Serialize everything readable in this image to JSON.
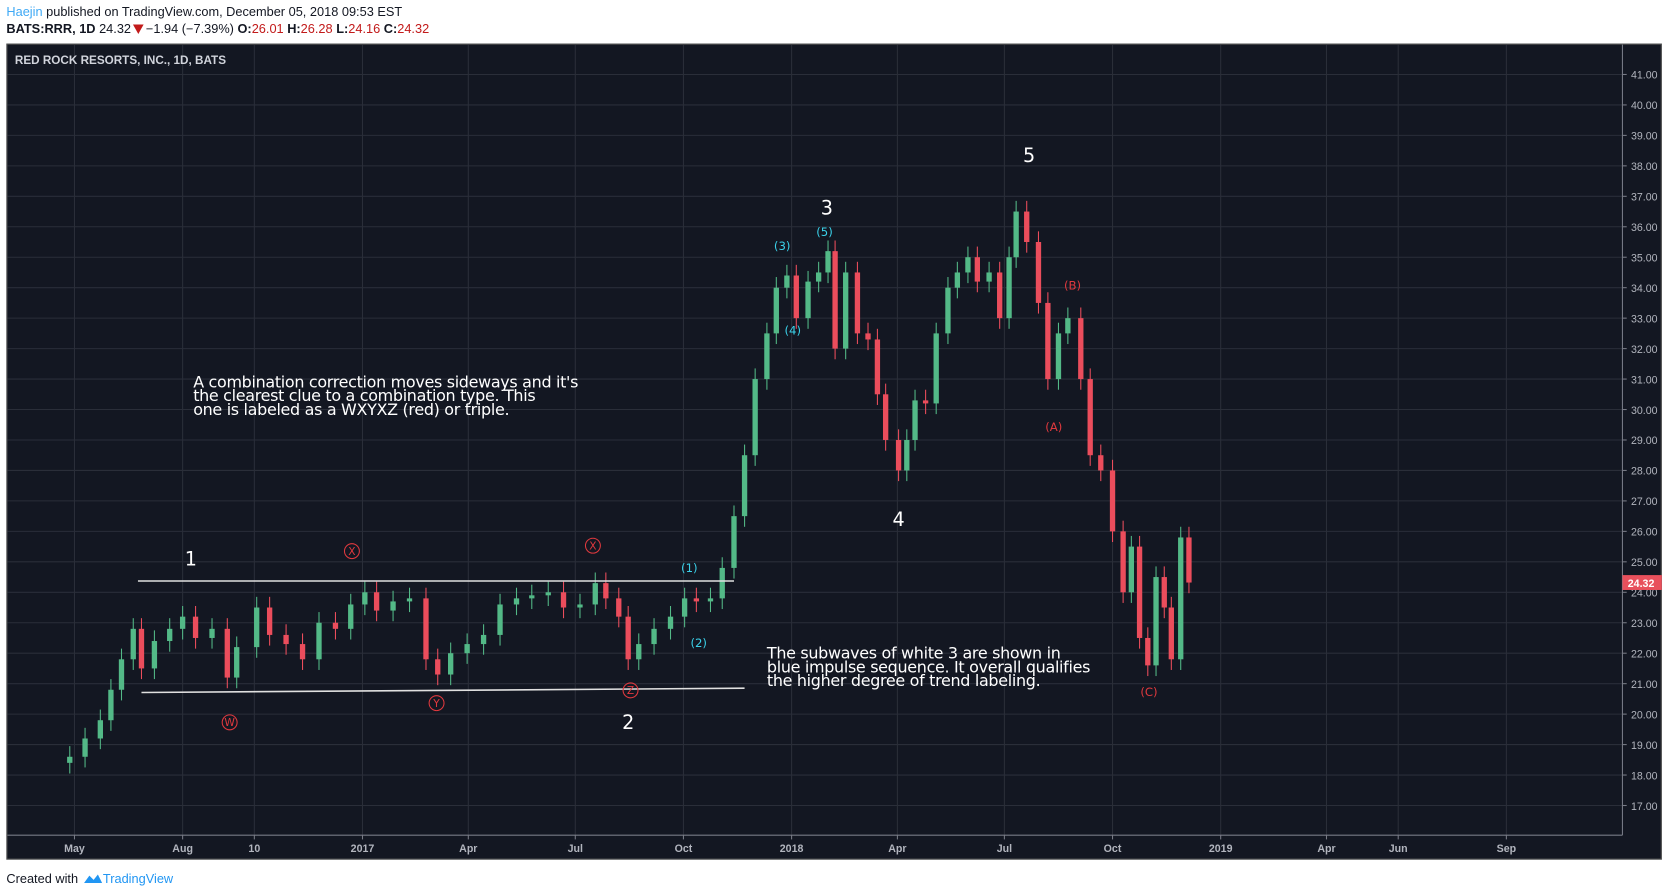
{
  "header": {
    "author": "Haejin",
    "published_text": " published on TradingView.com, December 05, 2018 09:53 EST",
    "symbol": "BATS:RRR, 1D",
    "last": "24.32",
    "change": "−1.94 (−7.39%)",
    "o_label": "O:",
    "o": "26.01",
    "h_label": "H:",
    "h": "26.28",
    "l_label": "L:",
    "l": "24.16",
    "c_label": "C:",
    "c": "24.32",
    "direction_icon": "triangle-down"
  },
  "footer": {
    "created_with": "Created with",
    "brand": "TradingView",
    "logo_icon": "tradingview-cloud-logo"
  },
  "colors": {
    "background": "#131722",
    "grid": "#2a2e39",
    "up": "#53b987",
    "down": "#eb4d5c",
    "axis_text": "#b2b5be",
    "wave_white": "#ffffff",
    "wave_red": "#e0393e",
    "wave_blue": "#3ad0e8",
    "price_tag": "#e8505c"
  },
  "chart_data": {
    "type": "candlestick",
    "title": "RED ROCK RESORTS, INC., 1D, BATS",
    "ylim": [
      16.1,
      42.0
    ],
    "grid": true,
    "y_ticks": [
      "17.00",
      "18.00",
      "19.00",
      "20.00",
      "21.00",
      "22.00",
      "23.00",
      "24.00",
      "25.00",
      "26.00",
      "27.00",
      "28.00",
      "29.00",
      "30.00",
      "31.00",
      "32.00",
      "33.00",
      "34.00",
      "35.00",
      "36.00",
      "37.00",
      "38.00",
      "39.00",
      "40.00",
      "41.00"
    ],
    "x_ticks": [
      {
        "label": "May",
        "date": "2016-05-01"
      },
      {
        "label": "Aug",
        "date": "2016-08-01"
      },
      {
        "label": "10",
        "date": "2016-10-01"
      },
      {
        "label": "2017",
        "date": "2017-01-01"
      },
      {
        "label": "Apr",
        "date": "2017-04-01"
      },
      {
        "label": "Jul",
        "date": "2017-07-01"
      },
      {
        "label": "Oct",
        "date": "2017-10-01"
      },
      {
        "label": "2018",
        "date": "2018-01-01"
      },
      {
        "label": "Apr",
        "date": "2018-04-01"
      },
      {
        "label": "Jul",
        "date": "2018-07-01"
      },
      {
        "label": "Oct",
        "date": "2018-10-01"
      },
      {
        "label": "2019",
        "date": "2019-01-01"
      },
      {
        "label": "Apr",
        "date": "2019-04-01"
      },
      {
        "label": "Jun",
        "date": "2019-06-01"
      },
      {
        "label": "Sep",
        "date": "2019-09-01"
      }
    ],
    "last_price_label": "24.32",
    "closes": [
      [
        "2016-04-27",
        18.6
      ],
      [
        "2016-05-10",
        19.2
      ],
      [
        "2016-05-23",
        19.8
      ],
      [
        "2016-06-01",
        20.8
      ],
      [
        "2016-06-10",
        21.8
      ],
      [
        "2016-06-20",
        22.8
      ],
      [
        "2016-06-27",
        21.5
      ],
      [
        "2016-07-08",
        22.4
      ],
      [
        "2016-07-21",
        22.8
      ],
      [
        "2016-08-01",
        23.2
      ],
      [
        "2016-08-12",
        22.5
      ],
      [
        "2016-08-26",
        22.8
      ],
      [
        "2016-09-08",
        21.2
      ],
      [
        "2016-09-16",
        22.2
      ],
      [
        "2016-10-03",
        23.5
      ],
      [
        "2016-10-14",
        22.6
      ],
      [
        "2016-10-28",
        22.3
      ],
      [
        "2016-11-11",
        21.8
      ],
      [
        "2016-11-25",
        23.0
      ],
      [
        "2016-12-09",
        22.8
      ],
      [
        "2016-12-22",
        23.6
      ],
      [
        "2017-01-03",
        24.0
      ],
      [
        "2017-01-13",
        23.4
      ],
      [
        "2017-01-27",
        23.7
      ],
      [
        "2017-02-10",
        23.8
      ],
      [
        "2017-02-24",
        21.8
      ],
      [
        "2017-03-06",
        21.3
      ],
      [
        "2017-03-17",
        22.0
      ],
      [
        "2017-03-31",
        22.3
      ],
      [
        "2017-04-14",
        22.6
      ],
      [
        "2017-04-28",
        23.6
      ],
      [
        "2017-05-12",
        23.8
      ],
      [
        "2017-05-25",
        23.9
      ],
      [
        "2017-06-08",
        24.0
      ],
      [
        "2017-06-21",
        23.5
      ],
      [
        "2017-07-05",
        23.6
      ],
      [
        "2017-07-18",
        24.3
      ],
      [
        "2017-07-27",
        23.8
      ],
      [
        "2017-08-07",
        23.2
      ],
      [
        "2017-08-15",
        21.8
      ],
      [
        "2017-08-24",
        22.3
      ],
      [
        "2017-09-06",
        22.8
      ],
      [
        "2017-09-20",
        23.2
      ],
      [
        "2017-10-02",
        23.8
      ],
      [
        "2017-10-12",
        23.7
      ],
      [
        "2017-10-24",
        23.8
      ],
      [
        "2017-11-03",
        24.8
      ],
      [
        "2017-11-13",
        26.5
      ],
      [
        "2017-11-22",
        28.5
      ],
      [
        "2017-12-01",
        31.0
      ],
      [
        "2017-12-11",
        32.5
      ],
      [
        "2017-12-19",
        34.0
      ],
      [
        "2017-12-28",
        34.4
      ],
      [
        "2018-01-05",
        33.0
      ],
      [
        "2018-01-15",
        34.2
      ],
      [
        "2018-01-24",
        34.5
      ],
      [
        "2018-02-01",
        35.2
      ],
      [
        "2018-02-07",
        32.0
      ],
      [
        "2018-02-16",
        34.5
      ],
      [
        "2018-02-26",
        32.5
      ],
      [
        "2018-03-07",
        32.3
      ],
      [
        "2018-03-15",
        30.5
      ],
      [
        "2018-03-22",
        29.0
      ],
      [
        "2018-04-02",
        28.0
      ],
      [
        "2018-04-09",
        29.0
      ],
      [
        "2018-04-16",
        30.3
      ],
      [
        "2018-04-25",
        30.2
      ],
      [
        "2018-05-04",
        32.5
      ],
      [
        "2018-05-14",
        34.0
      ],
      [
        "2018-05-22",
        34.5
      ],
      [
        "2018-05-31",
        35.0
      ],
      [
        "2018-06-08",
        34.2
      ],
      [
        "2018-06-18",
        34.5
      ],
      [
        "2018-06-27",
        33.0
      ],
      [
        "2018-07-05",
        35.0
      ],
      [
        "2018-07-11",
        36.5
      ],
      [
        "2018-07-20",
        35.5
      ],
      [
        "2018-07-30",
        33.5
      ],
      [
        "2018-08-07",
        31.0
      ],
      [
        "2018-08-16",
        32.5
      ],
      [
        "2018-08-24",
        33.0
      ],
      [
        "2018-09-04",
        31.0
      ],
      [
        "2018-09-12",
        28.5
      ],
      [
        "2018-09-21",
        28.0
      ],
      [
        "2018-10-01",
        26.0
      ],
      [
        "2018-10-10",
        24.0
      ],
      [
        "2018-10-17",
        25.5
      ],
      [
        "2018-10-24",
        22.5
      ],
      [
        "2018-10-31",
        21.6
      ],
      [
        "2018-11-07",
        24.5
      ],
      [
        "2018-11-14",
        23.5
      ],
      [
        "2018-11-20",
        21.8
      ],
      [
        "2018-11-28",
        25.8
      ],
      [
        "2018-12-05",
        24.32
      ]
    ],
    "trendlines": [
      {
        "from": [
          "2016-06-24",
          24.37
        ],
        "to": [
          "2017-11-13",
          24.37
        ]
      },
      {
        "from": [
          "2016-06-27",
          20.71
        ],
        "to": [
          "2017-11-22",
          20.85
        ]
      }
    ],
    "wave_labels": [
      {
        "text": "1",
        "date": "2016-08-08",
        "price": 25.1,
        "style": "white"
      },
      {
        "text": "2",
        "date": "2017-08-15",
        "price": 19.73,
        "style": "white"
      },
      {
        "text": "3",
        "date": "2018-01-31",
        "price": 36.63,
        "style": "white"
      },
      {
        "text": "4",
        "date": "2018-04-02",
        "price": 26.4,
        "style": "white"
      },
      {
        "text": "5",
        "date": "2018-07-22",
        "price": 38.35,
        "style": "white"
      },
      {
        "text": "W",
        "date": "2016-09-10",
        "price": 19.73,
        "style": "red-circle"
      },
      {
        "text": "X",
        "date": "2016-12-23",
        "price": 25.35,
        "style": "red-circle"
      },
      {
        "text": "Y",
        "date": "2017-03-05",
        "price": 20.36,
        "style": "red-circle"
      },
      {
        "text": "X",
        "date": "2017-07-16",
        "price": 25.53,
        "style": "red-circle"
      },
      {
        "text": "Z",
        "date": "2017-08-17",
        "price": 20.78,
        "style": "red-circle"
      },
      {
        "text": "(1)",
        "date": "2017-10-06",
        "price": 24.8,
        "style": "blue"
      },
      {
        "text": "(2)",
        "date": "2017-10-14",
        "price": 22.35,
        "style": "blue"
      },
      {
        "text": "(3)",
        "date": "2017-12-24",
        "price": 35.38,
        "style": "blue"
      },
      {
        "text": "(4)",
        "date": "2018-01-02",
        "price": 32.6,
        "style": "blue"
      },
      {
        "text": "(5)",
        "date": "2018-01-29",
        "price": 35.83,
        "style": "blue"
      },
      {
        "text": "(A)",
        "date": "2018-08-12",
        "price": 29.44,
        "style": "red"
      },
      {
        "text": "(B)",
        "date": "2018-08-28",
        "price": 34.08,
        "style": "red"
      },
      {
        "text": "(C)",
        "date": "2018-11-01",
        "price": 20.74,
        "style": "red"
      }
    ],
    "notes": [
      {
        "text": "A combination correction moves sideways and it's\nthe clearest clue to a combination type. This\none is labeled as a WXYXZ (red) or triple.",
        "date": "2016-08-10",
        "price": 30.9
      },
      {
        "text": "The subwaves of white 3 are shown in\nblue impulse sequence. It overall qualifies\nthe higher degree of trend labeling.",
        "date": "2017-12-11",
        "price": 22.0
      }
    ]
  }
}
